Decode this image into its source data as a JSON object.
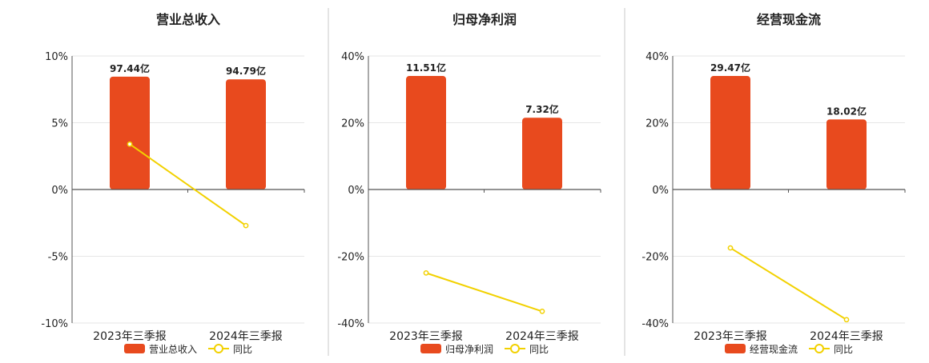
{
  "chart_data": [
    {
      "type": "bar",
      "title": "营业总收入",
      "categories": [
        "2023年三季报",
        "2024年三季报"
      ],
      "series": [
        {
          "name": "营业总收入",
          "type": "bar",
          "values": [
            8.45,
            8.25
          ],
          "labels": [
            "97.44亿",
            "94.79亿"
          ]
        },
        {
          "name": "同比",
          "type": "line",
          "values": [
            3.4,
            -2.7
          ]
        }
      ],
      "yticks": [
        "10%",
        "5%",
        "0%",
        "-5%",
        "-10%"
      ],
      "ylim": [
        -10,
        10
      ],
      "legend": "bottom",
      "colors": {
        "bar": "#e84a1e",
        "line": "#f2d100"
      }
    },
    {
      "type": "bar",
      "title": "归母净利润",
      "categories": [
        "2023年三季报",
        "2024年三季报"
      ],
      "series": [
        {
          "name": "归母净利润",
          "type": "bar",
          "values": [
            34,
            21.5
          ],
          "labels": [
            "11.51亿",
            "7.32亿"
          ]
        },
        {
          "name": "同比",
          "type": "line",
          "values": [
            -25,
            -36.5
          ]
        }
      ],
      "yticks": [
        "40%",
        "20%",
        "0%",
        "-20%",
        "-40%"
      ],
      "ylim": [
        -40,
        40
      ],
      "legend": "bottom",
      "colors": {
        "bar": "#e84a1e",
        "line": "#f2d100"
      }
    },
    {
      "type": "bar",
      "title": "经营现金流",
      "categories": [
        "2023年三季报",
        "2024年三季报"
      ],
      "series": [
        {
          "name": "经营现金流",
          "type": "bar",
          "values": [
            34,
            21
          ],
          "labels": [
            "29.47亿",
            "18.02亿"
          ]
        },
        {
          "name": "同比",
          "type": "line",
          "values": [
            -17.5,
            -39
          ]
        }
      ],
      "yticks": [
        "40%",
        "20%",
        "0%",
        "-20%",
        "-40%"
      ],
      "ylim": [
        -40,
        40
      ],
      "legend": "bottom",
      "colors": {
        "bar": "#e84a1e",
        "line": "#f2d100"
      }
    }
  ]
}
